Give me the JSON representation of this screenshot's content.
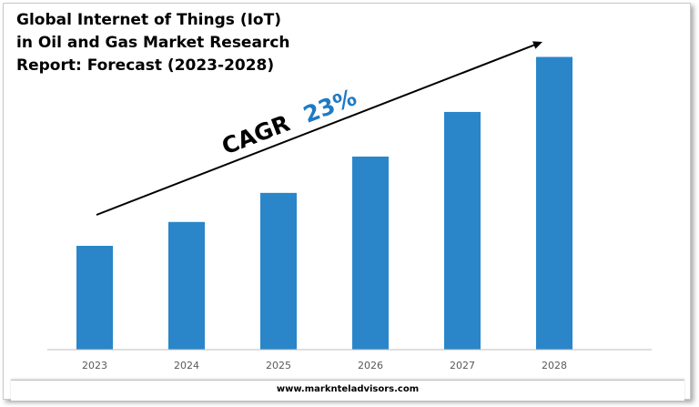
{
  "chart_data": {
    "type": "bar",
    "title": "Global Internet of Things (IoT)\nin Oil and Gas Market Research\nReport: Forecast (2023-2028)",
    "categories": [
      "2023",
      "2024",
      "2025",
      "2026",
      "2027",
      "2028"
    ],
    "values": [
      1.0,
      1.23,
      1.51,
      1.86,
      2.29,
      2.82
    ],
    "annotation": {
      "label": "CAGR",
      "value": "23%"
    },
    "ylim": [
      0,
      3.0
    ],
    "grid": false,
    "legend": "none"
  },
  "colors": {
    "bar": "#2a86c9",
    "cagr_value": "#1f7ac4",
    "cagr_label": "#000000",
    "axis": "#bfbfbf"
  },
  "footer": {
    "website": "www.marknteladvisors.com"
  }
}
